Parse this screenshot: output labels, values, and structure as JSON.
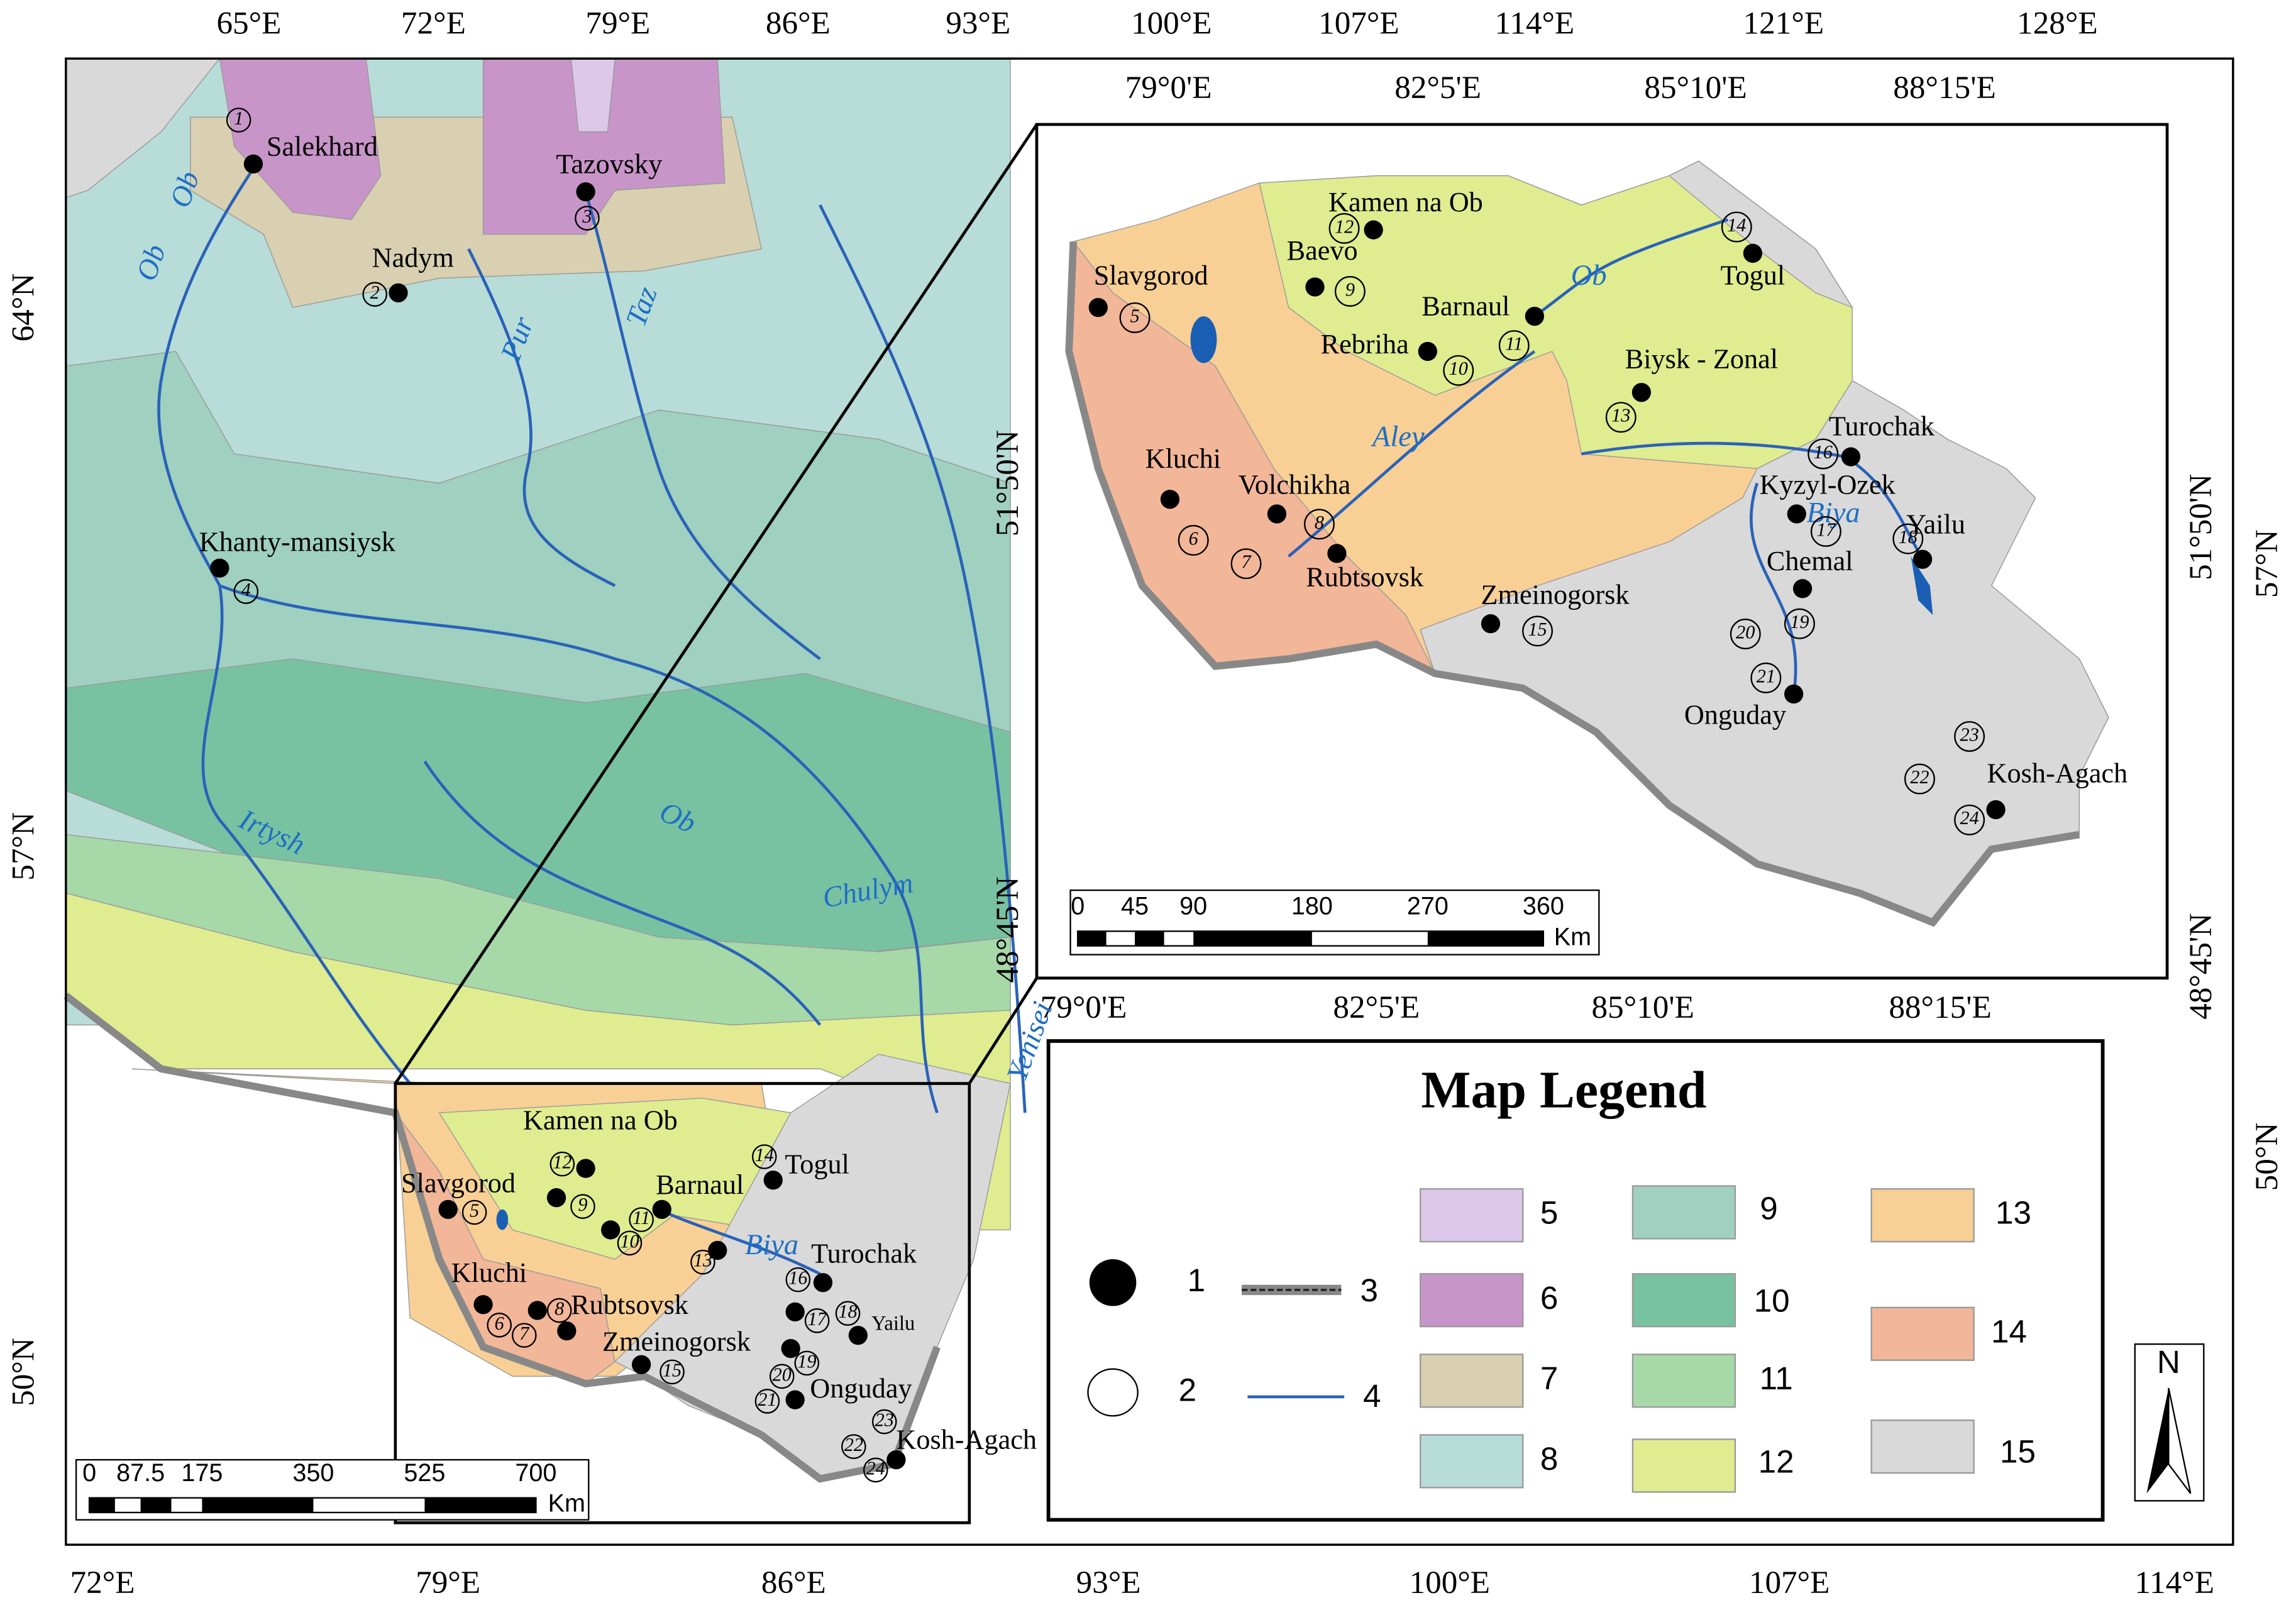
{
  "main_map": {
    "lon_top": [
      "65°E",
      "72°E",
      "79°E",
      "86°E",
      "93°E",
      "100°E",
      "107°E",
      "114°E",
      "121°E",
      "128°E"
    ],
    "lon_bottom": [
      "72°E",
      "79°E",
      "86°E",
      "93°E",
      "100°E",
      "107°E",
      "114°E"
    ],
    "lat_left": [
      "64°N",
      "57°N",
      "50°N"
    ],
    "lat_right": [
      "57°N",
      "50°N"
    ],
    "rivers": [
      "Ob",
      "Ob",
      "Pur",
      "Taz",
      "Irtysh",
      "Ob",
      "Chulym",
      "Yenisei",
      "Biya"
    ],
    "place_names": [
      "Salekhard",
      "Nadym",
      "Tazovsky",
      "Khanty-mansiysk",
      "Kamen na Ob",
      "Slavgorod",
      "Barnaul",
      "Togul",
      "Turochak",
      "Kluchi",
      "Rubtsovsk",
      "Yailu",
      "Zmeinogorsk",
      "Onguday",
      "Kosh-Agach"
    ],
    "station_numbers": [
      "1",
      "2",
      "3",
      "4",
      "5",
      "6",
      "7",
      "8",
      "9",
      "10",
      "11",
      "12",
      "13",
      "14",
      "15",
      "16",
      "17",
      "18",
      "19",
      "20",
      "21",
      "22",
      "23",
      "24"
    ],
    "scale_bar": {
      "ticks": [
        "0",
        "87.5",
        "175",
        "350",
        "525",
        "700"
      ],
      "unit": "Km"
    }
  },
  "inset_map": {
    "lon_top": [
      "79°0'E",
      "82°5'E",
      "85°10'E",
      "88°15'E"
    ],
    "lon_bottom": [
      "79°0'E",
      "82°5'E",
      "85°10'E",
      "88°15'E"
    ],
    "lat_left": [
      "51°50'N",
      "48°45'N"
    ],
    "lat_right": [
      "51°50'N",
      "48°45'N"
    ],
    "rivers": [
      "Ob",
      "Aley",
      "Biya"
    ],
    "place_names": [
      "Kamen na Ob",
      "Baevo",
      "Slavgorod",
      "Barnaul",
      "Rebriha",
      "Biysk - Zonal",
      "Togul",
      "Turochak",
      "Kluchi",
      "Volchikha",
      "Kyzyl-Ozek",
      "Yailu",
      "Chemal",
      "Rubtsovsk",
      "Zmeinogorsk",
      "Onguday",
      "Kosh-Agach"
    ],
    "station_numbers": [
      "12",
      "9",
      "5",
      "11",
      "10",
      "13",
      "14",
      "16",
      "6",
      "8",
      "7",
      "17",
      "18",
      "19",
      "15",
      "20",
      "21",
      "23",
      "22",
      "24"
    ],
    "scale_bar": {
      "ticks": [
        "0",
        "45",
        "90",
        "180",
        "270",
        "360"
      ],
      "unit": "Km"
    }
  },
  "legend": {
    "title": "Map Legend",
    "symbols": [
      "1",
      "2",
      "3",
      "4"
    ],
    "zones": [
      {
        "label": "5",
        "color": "#ddc8ea"
      },
      {
        "label": "6",
        "color": "#c895c8"
      },
      {
        "label": "7",
        "color": "#d8d0b0"
      },
      {
        "label": "8",
        "color": "#b8dcd8"
      },
      {
        "label": "9",
        "color": "#9fd0c0"
      },
      {
        "label": "10",
        "color": "#78c2a2"
      },
      {
        "label": "11",
        "color": "#a6d8a8"
      },
      {
        "label": "12",
        "color": "#dfec90"
      },
      {
        "label": "13",
        "color": "#f8d095"
      },
      {
        "label": "14",
        "color": "#f2b698"
      },
      {
        "label": "15",
        "color": "#d9d9d9"
      }
    ],
    "north": "N"
  }
}
